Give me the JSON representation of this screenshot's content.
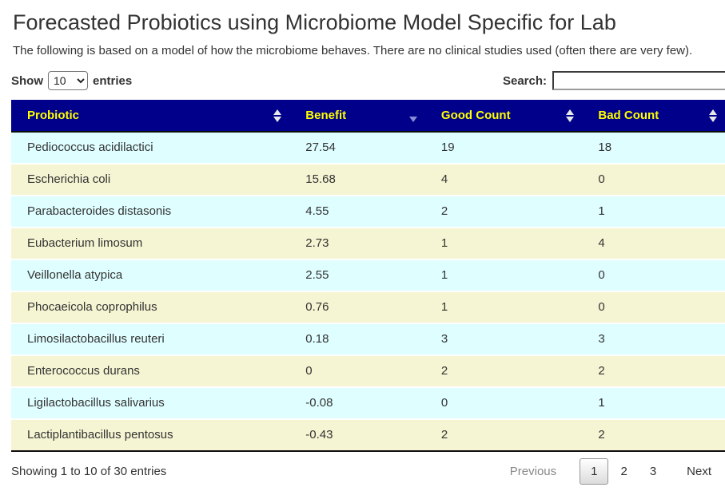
{
  "page": {
    "title": "Forecasted Probiotics using Microbiome Model Specific for Lab",
    "subtitle": "The following is based on a model of how the microbiome behaves. There are no clinical studies used (often there are very few)."
  },
  "controls": {
    "show_label": "Show",
    "entries_label": "entries",
    "page_length": "10",
    "search_label": "Search:",
    "search_value": ""
  },
  "table": {
    "columns": [
      {
        "label": "Probiotic",
        "sort_state": "unsorted"
      },
      {
        "label": "Benefit",
        "sort_state": "sorted-descending"
      },
      {
        "label": "Good Count",
        "sort_state": "unsorted"
      },
      {
        "label": "Bad Count",
        "sort_state": "unsorted"
      }
    ],
    "rows": [
      {
        "probiotic": "Pediococcus acidilactici",
        "benefit": "27.54",
        "good_count": "19",
        "bad_count": "18"
      },
      {
        "probiotic": "Escherichia coli",
        "benefit": "15.68",
        "good_count": "4",
        "bad_count": "0"
      },
      {
        "probiotic": "Parabacteroides distasonis",
        "benefit": "4.55",
        "good_count": "2",
        "bad_count": "1"
      },
      {
        "probiotic": "Eubacterium limosum",
        "benefit": "2.73",
        "good_count": "1",
        "bad_count": "4"
      },
      {
        "probiotic": "Veillonella atypica",
        "benefit": "2.55",
        "good_count": "1",
        "bad_count": "0"
      },
      {
        "probiotic": "Phocaeicola coprophilus",
        "benefit": "0.76",
        "good_count": "1",
        "bad_count": "0"
      },
      {
        "probiotic": "Limosilactobacillus reuteri",
        "benefit": "0.18",
        "good_count": "3",
        "bad_count": "3"
      },
      {
        "probiotic": "Enterococcus durans",
        "benefit": "0",
        "good_count": "2",
        "bad_count": "2"
      },
      {
        "probiotic": "Ligilactobacillus salivarius",
        "benefit": "-0.08",
        "good_count": "0",
        "bad_count": "1"
      },
      {
        "probiotic": "Lactiplantibacillus pentosus",
        "benefit": "-0.43",
        "good_count": "2",
        "bad_count": "2"
      }
    ]
  },
  "footer": {
    "info": "Showing 1 to 10 of 30 entries",
    "pagination": {
      "previous_label": "Previous",
      "pages": [
        "1",
        "2",
        "3"
      ],
      "current_page": "1",
      "next_label": "Next"
    }
  },
  "colors": {
    "header_bg": "#00008B",
    "header_text": "#FFFF00",
    "row_cyan": "#DFFEFF",
    "row_yellow": "#F5F5D3",
    "sort_icon": "#E8E8E8",
    "sort_desc_icon": "#8C8CD2",
    "body_text": "#333333"
  }
}
